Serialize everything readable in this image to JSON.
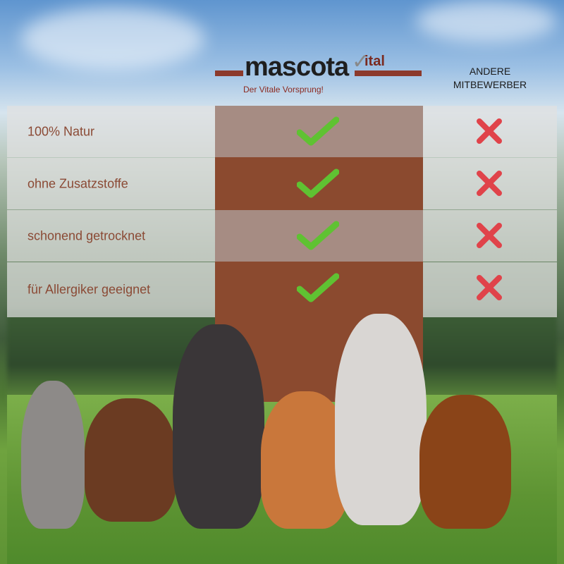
{
  "header": {
    "logo_text": "mascota",
    "logo_suffix": "ital",
    "tagline": "Der Vitale Vorsprung!",
    "competitor_heading_line1": "ANDERE",
    "competitor_heading_line2": "MITBEWERBER"
  },
  "rows": [
    {
      "label": "100% Natur",
      "mascota": "check",
      "others": "cross"
    },
    {
      "label": "ohne Zusatzstoffe",
      "mascota": "check",
      "others": "cross"
    },
    {
      "label": "schonend getrocknet",
      "mascota": "check",
      "others": "cross"
    },
    {
      "label": "für Allergiker geeignet",
      "mascota": "check",
      "others": "cross"
    }
  ],
  "colors": {
    "brand_brown": "#8b4a2f",
    "check_green": "#5fc232",
    "cross_red": "#e0434a",
    "text_brown": "#8b4a35"
  },
  "icons": {
    "check": "check-icon",
    "cross": "cross-icon"
  }
}
